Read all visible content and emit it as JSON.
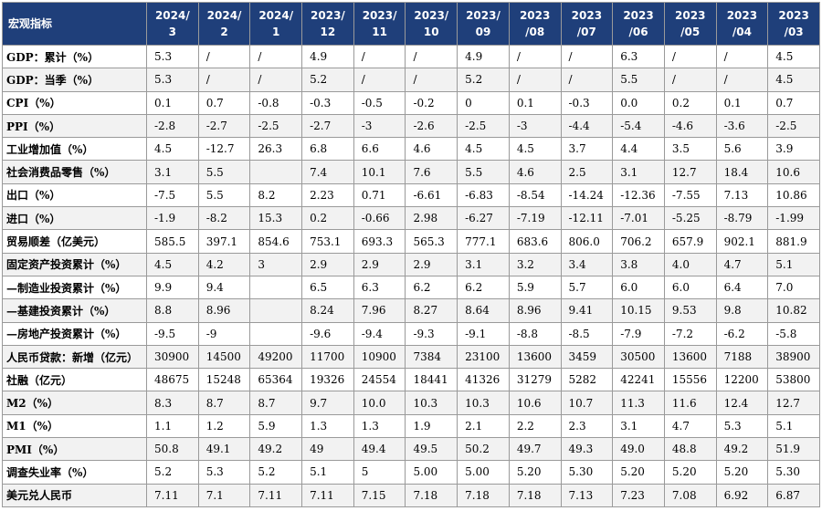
{
  "table": {
    "corner": "宏观指标",
    "headers": [
      [
        "2024/",
        "3"
      ],
      [
        "2024/",
        "2"
      ],
      [
        "2024/",
        "1"
      ],
      [
        "2023/",
        "12"
      ],
      [
        "2023/",
        "11"
      ],
      [
        "2023/",
        "10"
      ],
      [
        "2023/",
        "09"
      ],
      [
        "2023",
        "/08"
      ],
      [
        "2023",
        "/07"
      ],
      [
        "2023",
        "/06"
      ],
      [
        "2023",
        "/05"
      ],
      [
        "2023",
        "/04"
      ],
      [
        "2023",
        "/03"
      ]
    ],
    "rows": [
      {
        "label": "GDP：累计（%）",
        "values": [
          "5.3",
          "/",
          "/",
          "4.9",
          "/",
          "/",
          "4.9",
          "/",
          "/",
          "6.3",
          "/",
          "/",
          "4.5"
        ]
      },
      {
        "label": "GDP：当季（%）",
        "values": [
          "5.3",
          "/",
          "/",
          "5.2",
          "/",
          "/",
          "5.2",
          "/",
          "/",
          "5.5",
          "/",
          "/",
          "4.5"
        ]
      },
      {
        "label": "CPI（%）",
        "values": [
          "0.1",
          "0.7",
          "-0.8",
          "-0.3",
          "-0.5",
          "-0.2",
          "0",
          "0.1",
          "-0.3",
          "0.0",
          "0.2",
          "0.1",
          "0.7"
        ]
      },
      {
        "label": "PPI（%）",
        "values": [
          "-2.8",
          "-2.7",
          "-2.5",
          "-2.7",
          "-3",
          "-2.6",
          "-2.5",
          "-3",
          "-4.4",
          "-5.4",
          "-4.6",
          "-3.6",
          "-2.5"
        ]
      },
      {
        "label": "工业增加值（%）",
        "values": [
          "4.5",
          "-12.7",
          "26.3",
          "6.8",
          "6.6",
          "4.6",
          "4.5",
          "4.5",
          "3.7",
          "4.4",
          "3.5",
          "5.6",
          "3.9"
        ]
      },
      {
        "label": "社会消费品零售（%）",
        "values": [
          "3.1",
          "5.5",
          "",
          "7.4",
          "10.1",
          "7.6",
          "5.5",
          "4.6",
          "2.5",
          "3.1",
          "12.7",
          "18.4",
          "10.6"
        ]
      },
      {
        "label": "出口（%）",
        "values": [
          "-7.5",
          "5.5",
          "8.2",
          "2.23",
          "0.71",
          "-6.61",
          "-6.83",
          "-8.54",
          "-14.24",
          "-12.36",
          "-7.55",
          "7.13",
          "10.86"
        ]
      },
      {
        "label": "进口（%）",
        "values": [
          "-1.9",
          "-8.2",
          "15.3",
          "0.2",
          "-0.66",
          "2.98",
          "-6.27",
          "-7.19",
          "-12.11",
          "-7.01",
          "-5.25",
          "-8.79",
          "-1.99"
        ]
      },
      {
        "label": "贸易顺差（亿美元）",
        "values": [
          "585.5",
          "397.1",
          "854.6",
          "753.1",
          "693.3",
          "565.3",
          "777.1",
          "683.6",
          "806.0",
          "706.2",
          "657.9",
          "902.1",
          "881.9"
        ]
      },
      {
        "label": "固定资产投资累计（%）",
        "values": [
          "4.5",
          "4.2",
          "3",
          "2.9",
          "2.9",
          "2.9",
          "3.1",
          "3.2",
          "3.4",
          "3.8",
          "4.0",
          "4.7",
          "5.1"
        ]
      },
      {
        "label": "—制造业投资累计（%）",
        "values": [
          "9.9",
          "9.4",
          "",
          "6.5",
          "6.3",
          "6.2",
          "6.2",
          "5.9",
          "5.7",
          "6.0",
          "6.0",
          "6.4",
          "7.0"
        ]
      },
      {
        "label": "—基建投资累计（%）",
        "values": [
          "8.8",
          "8.96",
          "",
          "8.24",
          "7.96",
          "8.27",
          "8.64",
          "8.96",
          "9.41",
          "10.15",
          "9.53",
          "9.8",
          "10.82"
        ]
      },
      {
        "label": "—房地产投资累计（%）",
        "values": [
          "-9.5",
          "-9",
          "",
          "-9.6",
          "-9.4",
          "-9.3",
          "-9.1",
          "-8.8",
          "-8.5",
          "-7.9",
          "-7.2",
          "-6.2",
          "-5.8"
        ]
      },
      {
        "label": "人民币贷款：新增（亿元）",
        "values": [
          "30900",
          "14500",
          "49200",
          "11700",
          "10900",
          "7384",
          "23100",
          "13600",
          "3459",
          "30500",
          "13600",
          "7188",
          "38900"
        ]
      },
      {
        "label": "社融（亿元）",
        "values": [
          "48675",
          "15248",
          "65364",
          "19326",
          "24554",
          "18441",
          "41326",
          "31279",
          "5282",
          "42241",
          "15556",
          "12200",
          "53800"
        ]
      },
      {
        "label": "M2（%）",
        "values": [
          "8.3",
          "8.7",
          "8.7",
          "9.7",
          "10.0",
          "10.3",
          "10.3",
          "10.6",
          "10.7",
          "11.3",
          "11.6",
          "12.4",
          "12.7"
        ]
      },
      {
        "label": "M1（%）",
        "values": [
          "1.1",
          "1.2",
          "5.9",
          "1.3",
          "1.3",
          "1.9",
          "2.1",
          "2.2",
          "2.3",
          "3.1",
          "4.7",
          "5.3",
          "5.1"
        ]
      },
      {
        "label": "PMI（%）",
        "values": [
          "50.8",
          "49.1",
          "49.2",
          "49",
          "49.4",
          "49.5",
          "50.2",
          "49.7",
          "49.3",
          "49.0",
          "48.8",
          "49.2",
          "51.9"
        ]
      },
      {
        "label": "调查失业率（%）",
        "values": [
          "5.2",
          "5.3",
          "5.2",
          "5.1",
          "5",
          "5.00",
          "5.00",
          "5.20",
          "5.30",
          "5.20",
          "5.20",
          "5.20",
          "5.30"
        ]
      },
      {
        "label": "美元兑人民币",
        "values": [
          "7.11",
          "7.1",
          "7.11",
          "7.11",
          "7.15",
          "7.18",
          "7.18",
          "7.18",
          "7.13",
          "7.23",
          "7.08",
          "6.92",
          "6.87"
        ]
      }
    ]
  }
}
